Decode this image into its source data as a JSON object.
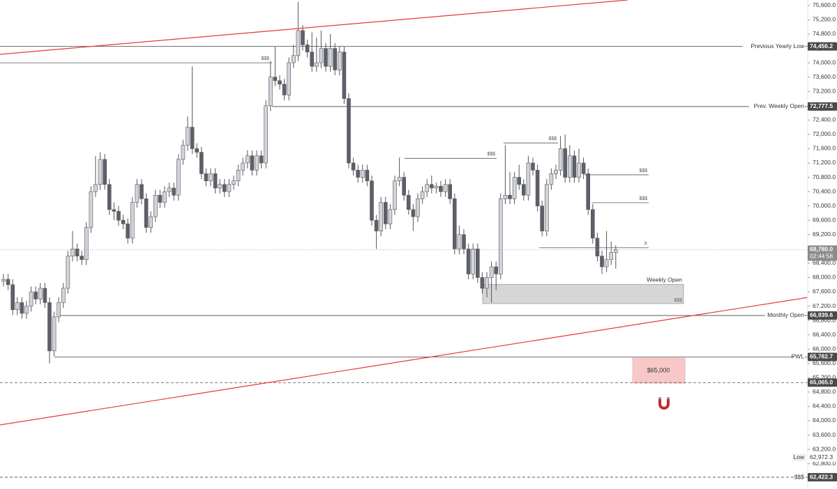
{
  "chart_data": {
    "type": "candlestick",
    "ylim": [
      62093,
      75753
    ],
    "yticks": [
      {
        "value": 62800,
        "label": "62,800.0"
      },
      {
        "value": 63200,
        "label": "63,200.0"
      },
      {
        "value": 63600,
        "label": "63,600.0"
      },
      {
        "value": 64000,
        "label": "64,000.0"
      },
      {
        "value": 64400,
        "label": "64,400.0"
      },
      {
        "value": 64800,
        "label": "64,800.0"
      },
      {
        "value": 65200,
        "label": "65,200.0"
      },
      {
        "value": 65600,
        "label": "65,600.0"
      },
      {
        "value": 66000,
        "label": "66,000.0"
      },
      {
        "value": 66400,
        "label": "66,400.0"
      },
      {
        "value": 66800,
        "label": "66,800.0"
      },
      {
        "value": 67200,
        "label": "67,200.0"
      },
      {
        "value": 67600,
        "label": "67,600.0"
      },
      {
        "value": 68000,
        "label": "68,000.0"
      },
      {
        "value": 68400,
        "label": "68,400.0"
      },
      {
        "value": 68800,
        "label": "68,800.0"
      },
      {
        "value": 69200,
        "label": "69,200.0"
      },
      {
        "value": 69600,
        "label": "69,600.0"
      },
      {
        "value": 70000,
        "label": "70,000.0"
      },
      {
        "value": 70400,
        "label": "70,400.0"
      },
      {
        "value": 70800,
        "label": "70,800.0"
      },
      {
        "value": 71200,
        "label": "71,200.0"
      },
      {
        "value": 71600,
        "label": "71,600.0"
      },
      {
        "value": 72000,
        "label": "72,000.0"
      },
      {
        "value": 72400,
        "label": "72,400.0"
      },
      {
        "value": 72800,
        "label": "72,800.0"
      },
      {
        "value": 73200,
        "label": "73,200.0"
      },
      {
        "value": 73600,
        "label": "73,600.0"
      },
      {
        "value": 74000,
        "label": "74,000.0"
      },
      {
        "value": 74400,
        "label": "74,400.0"
      },
      {
        "value": 74800,
        "label": "74,800.0"
      },
      {
        "value": 75200,
        "label": "75,200.0"
      },
      {
        "value": 75600,
        "label": "75,600.0"
      }
    ],
    "up_color": "#d1d4dc",
    "down_color": "#5d606b",
    "ohlc": [
      [
        67900,
        68100,
        67750,
        67950
      ],
      [
        67950,
        68100,
        67650,
        67800
      ],
      [
        67800,
        67950,
        66950,
        67100
      ],
      [
        67100,
        67450,
        66950,
        67300
      ],
      [
        67300,
        67450,
        66850,
        67000
      ],
      [
        67000,
        67350,
        66850,
        67200
      ],
      [
        67200,
        67750,
        67050,
        67600
      ],
      [
        67600,
        67750,
        67250,
        67400
      ],
      [
        67400,
        67850,
        67250,
        67700
      ],
      [
        67700,
        67850,
        67150,
        67300
      ],
      [
        67300,
        67450,
        65600,
        65950
      ],
      [
        65950,
        67050,
        65800,
        66900
      ],
      [
        66900,
        67450,
        66750,
        67300
      ],
      [
        67300,
        67850,
        67150,
        67700
      ],
      [
        67700,
        68750,
        67550,
        68600
      ],
      [
        68600,
        69300,
        68450,
        68800
      ],
      [
        68800,
        68950,
        68450,
        68600
      ],
      [
        68600,
        68750,
        68350,
        68500
      ],
      [
        68500,
        69550,
        68350,
        69400
      ],
      [
        69400,
        70550,
        69250,
        70400
      ],
      [
        70400,
        71400,
        70250,
        70600
      ],
      [
        70600,
        71500,
        70450,
        71300
      ],
      [
        71300,
        71450,
        70450,
        70600
      ],
      [
        70600,
        70750,
        69750,
        69900
      ],
      [
        69900,
        70100,
        69600,
        69850
      ],
      [
        69850,
        70000,
        69450,
        69600
      ],
      [
        69600,
        69750,
        69350,
        69500
      ],
      [
        69500,
        69650,
        68950,
        69100
      ],
      [
        69100,
        70250,
        68950,
        70100
      ],
      [
        70100,
        70750,
        69950,
        70600
      ],
      [
        70600,
        70750,
        70050,
        70200
      ],
      [
        70200,
        70350,
        69250,
        69400
      ],
      [
        69400,
        69850,
        69250,
        69700
      ],
      [
        69700,
        70450,
        69550,
        70300
      ],
      [
        70300,
        70450,
        69950,
        70100
      ],
      [
        70100,
        70550,
        69950,
        70400
      ],
      [
        70400,
        70650,
        70250,
        70500
      ],
      [
        70500,
        70650,
        70150,
        70300
      ],
      [
        70300,
        71450,
        70150,
        71300
      ],
      [
        71300,
        71850,
        71150,
        71700
      ],
      [
        71700,
        72500,
        71550,
        72200
      ],
      [
        72200,
        73900,
        71450,
        71600
      ],
      [
        71600,
        71750,
        71350,
        71500
      ],
      [
        71500,
        71650,
        70750,
        70900
      ],
      [
        70900,
        71050,
        70550,
        70700
      ],
      [
        70700,
        71050,
        70550,
        70900
      ],
      [
        70900,
        71050,
        70350,
        70500
      ],
      [
        70500,
        70750,
        70350,
        70600
      ],
      [
        70600,
        70750,
        70250,
        70400
      ],
      [
        70400,
        70750,
        70250,
        70600
      ],
      [
        70600,
        70850,
        70450,
        70700
      ],
      [
        70700,
        71150,
        70550,
        71000
      ],
      [
        71000,
        71350,
        70850,
        71200
      ],
      [
        71200,
        71550,
        71050,
        71400
      ],
      [
        71400,
        71550,
        70850,
        71000
      ],
      [
        71000,
        71550,
        70850,
        71400
      ],
      [
        71400,
        71550,
        71050,
        71200
      ],
      [
        71200,
        72950,
        71050,
        72800
      ],
      [
        72800,
        74050,
        72650,
        73600
      ],
      [
        73600,
        74450,
        73350,
        73500
      ],
      [
        73500,
        73650,
        73250,
        73400
      ],
      [
        73400,
        73550,
        72950,
        73100
      ],
      [
        73100,
        74150,
        72950,
        74000
      ],
      [
        74000,
        74500,
        73850,
        74200
      ],
      [
        74200,
        75700,
        74050,
        74900
      ],
      [
        74900,
        75050,
        74350,
        74500
      ],
      [
        74500,
        74650,
        74150,
        74300
      ],
      [
        74300,
        74850,
        73750,
        73900
      ],
      [
        73900,
        74700,
        73750,
        74000
      ],
      [
        74000,
        74900,
        73850,
        74400
      ],
      [
        74400,
        74550,
        73750,
        73900
      ],
      [
        73900,
        74800,
        73750,
        74400
      ],
      [
        74400,
        74550,
        73650,
        73800
      ],
      [
        73800,
        74450,
        73650,
        74300
      ],
      [
        74300,
        74450,
        72850,
        73000
      ],
      [
        73000,
        73150,
        71050,
        71200
      ],
      [
        71200,
        71350,
        70850,
        71000
      ],
      [
        71000,
        71150,
        70650,
        70800
      ],
      [
        70800,
        71150,
        70650,
        71000
      ],
      [
        71000,
        71150,
        70550,
        70700
      ],
      [
        70700,
        70850,
        69450,
        69600
      ],
      [
        69600,
        69750,
        68800,
        69300
      ],
      [
        69300,
        70250,
        69150,
        70100
      ],
      [
        70100,
        70250,
        69350,
        69500
      ],
      [
        69500,
        70050,
        69350,
        69900
      ],
      [
        69900,
        70850,
        69750,
        70700
      ],
      [
        70700,
        71350,
        70550,
        70800
      ],
      [
        70800,
        70950,
        70150,
        70300
      ],
      [
        70300,
        70450,
        69750,
        69900
      ],
      [
        69900,
        70050,
        69300,
        69700
      ],
      [
        69700,
        70350,
        69550,
        70200
      ],
      [
        70200,
        70550,
        70050,
        70400
      ],
      [
        70400,
        70750,
        70250,
        70600
      ],
      [
        70600,
        70850,
        70350,
        70500
      ],
      [
        70500,
        70650,
        70350,
        70550
      ],
      [
        70550,
        70700,
        70250,
        70400
      ],
      [
        70400,
        70750,
        70250,
        70600
      ],
      [
        70600,
        70750,
        70050,
        70200
      ],
      [
        70200,
        70350,
        68650,
        68800
      ],
      [
        68800,
        69450,
        68650,
        69200
      ],
      [
        69200,
        69350,
        68650,
        68800
      ],
      [
        68800,
        68950,
        67950,
        68100
      ],
      [
        68100,
        68950,
        67950,
        68800
      ],
      [
        68800,
        68950,
        67850,
        68000
      ],
      [
        68000,
        68150,
        67550,
        67700
      ],
      [
        67700,
        68150,
        67450,
        68000
      ],
      [
        68000,
        68450,
        67300,
        68300
      ],
      [
        68300,
        68450,
        67650,
        68100
      ],
      [
        68100,
        70350,
        67950,
        70200
      ],
      [
        70200,
        71700,
        70050,
        70300
      ],
      [
        70300,
        70950,
        70050,
        70200
      ],
      [
        70200,
        70950,
        70050,
        70800
      ],
      [
        70800,
        71150,
        70450,
        70600
      ],
      [
        70600,
        70750,
        70150,
        70300
      ],
      [
        70300,
        71400,
        70150,
        71200
      ],
      [
        71200,
        71350,
        70850,
        71000
      ],
      [
        71000,
        71150,
        69850,
        70000
      ],
      [
        70000,
        70150,
        69150,
        69300
      ],
      [
        69300,
        70750,
        69150,
        70600
      ],
      [
        70600,
        71050,
        70450,
        70900
      ],
      [
        70900,
        71150,
        70750,
        71000
      ],
      [
        71000,
        71950,
        70850,
        71600
      ],
      [
        71600,
        72000,
        70650,
        70800
      ],
      [
        70800,
        71700,
        70650,
        71400
      ],
      [
        71400,
        71550,
        70650,
        70800
      ],
      [
        70800,
        71600,
        70650,
        71200
      ],
      [
        71200,
        71350,
        70750,
        70900
      ],
      [
        70900,
        71050,
        69750,
        69900
      ],
      [
        69900,
        70050,
        68950,
        69100
      ],
      [
        69100,
        69250,
        68450,
        68600
      ],
      [
        68600,
        68750,
        68100,
        68300
      ],
      [
        68300,
        69300,
        68150,
        68500
      ],
      [
        68500,
        69000,
        68350,
        68700
      ],
      [
        68700,
        68900,
        68250,
        68780
      ]
    ],
    "levels": [
      {
        "label": "Previous Yearly Low",
        "value": 74456.2,
        "value_label": "74,456.2"
      },
      {
        "label": "Prev. Weekly Open",
        "value": 72777.5,
        "value_label": "72,777.5"
      },
      {
        "label": "Monthly Open",
        "value": 66939.6,
        "value_label": "66,939.6"
      },
      {
        "label": "PWL",
        "value": 65782.7,
        "value_label": "65,782.7"
      },
      {
        "value": 65065,
        "value_label": "65,065.0"
      },
      {
        "label": "$$$",
        "value": 62422.3,
        "value_label": "62,422.3"
      }
    ],
    "last_price": {
      "value": 68780,
      "value_label": "68,780.0",
      "countdown": "02:44:58"
    },
    "low": {
      "label": "Low",
      "value": 62972.3,
      "value_label": "62,972.3"
    },
    "liquidity": [
      {
        "label": "$$$",
        "value": 74000
      },
      {
        "label": "$$$",
        "value": 71330
      },
      {
        "label": "$$$",
        "value": 71760
      },
      {
        "label": "$$$",
        "value": 70870
      },
      {
        "label": "$$$",
        "value": 70090
      },
      {
        "label": "X",
        "value": 68830
      }
    ],
    "weekly_open_zone": {
      "label": "Weekly Open",
      "sublabel": "$$$",
      "top": 67810,
      "bottom": 67270
    },
    "target": {
      "label": "$65,000",
      "top": 65750,
      "bottom": 65050
    }
  }
}
